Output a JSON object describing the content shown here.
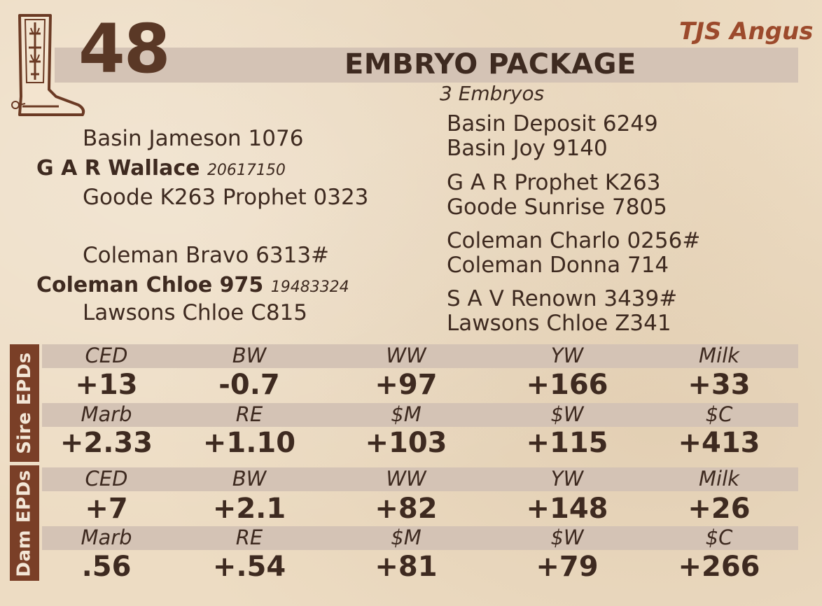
{
  "lot_number": "48",
  "farm": "TJS Angus",
  "title": "EMBRYO PACKAGE",
  "subtitle": "3 Embryos",
  "pedigree": {
    "sire_sire": "Basin Jameson 1076",
    "sire_name": "G A R Wallace",
    "sire_reg": "20617150",
    "sire_dam": "Goode K263 Prophet 0323",
    "dam_sire": "Coleman Bravo 6313#",
    "dam_name": "Coleman Chloe 975",
    "dam_reg": "19483324",
    "dam_dam": "Lawsons Chloe C815",
    "g1": "Basin Deposit 6249",
    "g2": "Basin Joy 9140",
    "g3": "G A R Prophet K263",
    "g4": "Goode Sunrise 7805",
    "g5": "Coleman Charlo 0256#",
    "g6": "Coleman Donna 714",
    "g7": "S A V Renown 3439#",
    "g8": "Lawsons Chloe Z341"
  },
  "sire_label": "Sire EPDs",
  "dam_label": "Dam EPDs",
  "sire_epds": {
    "row1_labels": [
      "CED",
      "BW",
      "WW",
      "YW",
      "Milk"
    ],
    "row1_values": [
      "+13",
      "-0.7",
      "+97",
      "+166",
      "+33"
    ],
    "row2_labels": [
      "Marb",
      "RE",
      "$M",
      "$W",
      "$C"
    ],
    "row2_values": [
      "+2.33",
      "+1.10",
      "+103",
      "+115",
      "+413"
    ]
  },
  "dam_epds": {
    "row1_labels": [
      "CED",
      "BW",
      "WW",
      "YW",
      "Milk"
    ],
    "row1_values": [
      "+7",
      "+2.1",
      "+82",
      "+148",
      "+26"
    ],
    "row2_labels": [
      "Marb",
      "RE",
      "$M",
      "$W",
      "$C"
    ],
    "row2_values": [
      ".56",
      "+.54",
      "+81",
      "+79",
      "+266"
    ]
  },
  "colors": {
    "brand": "#7a3f27",
    "band": "#d4c3b5",
    "farm": "#9c4a2c"
  }
}
